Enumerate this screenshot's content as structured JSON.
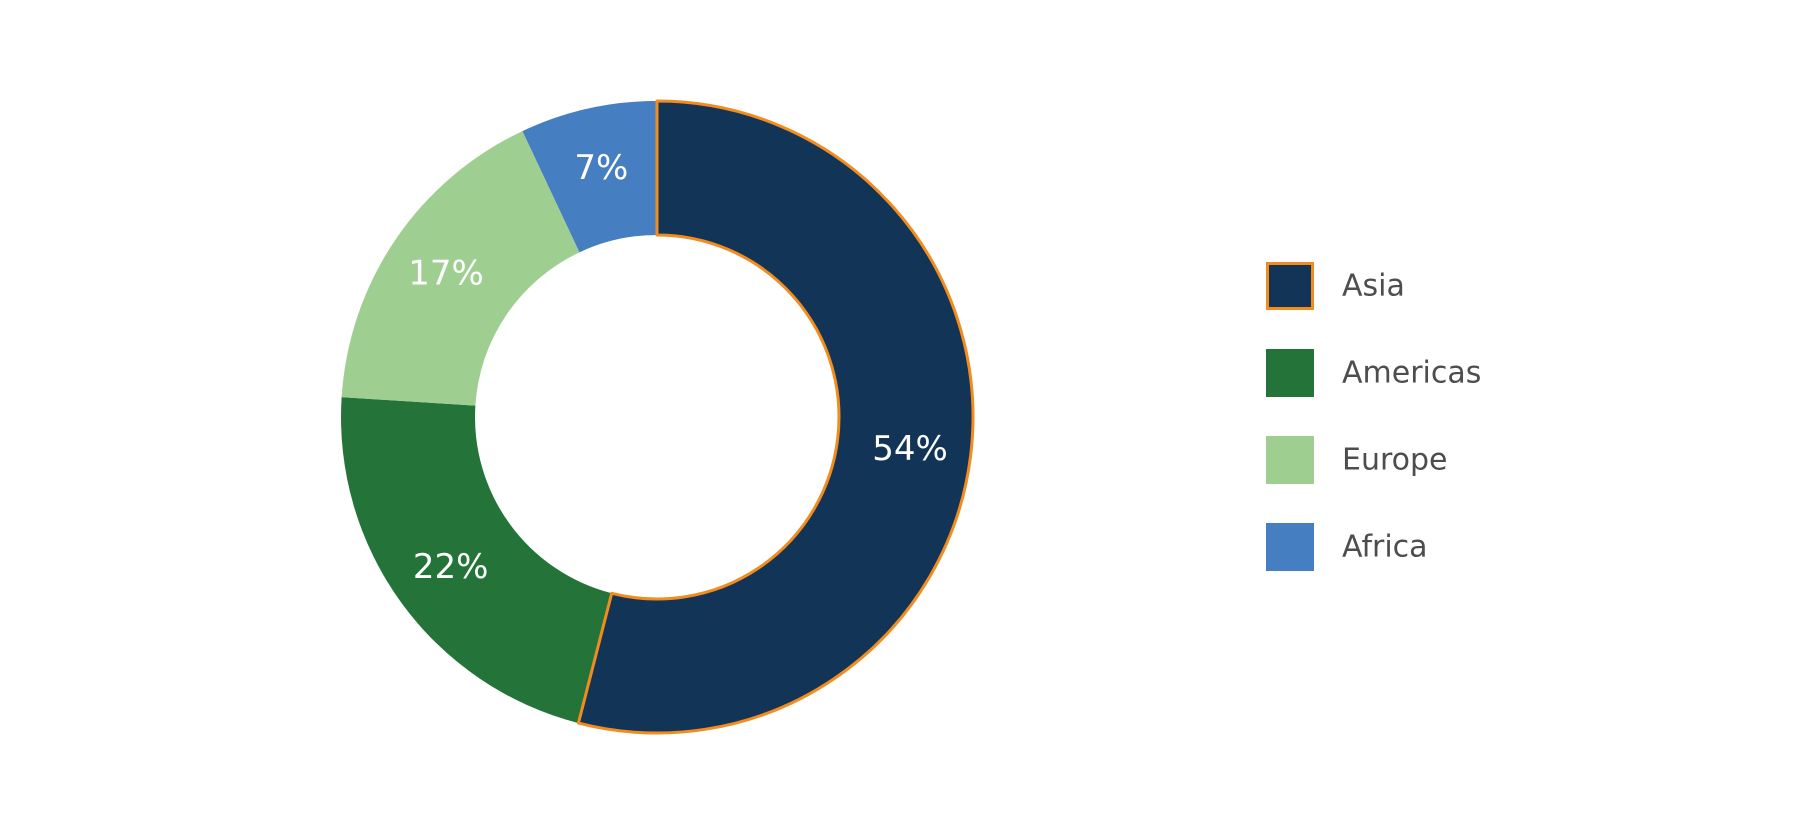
{
  "chart_data": {
    "type": "pie",
    "variant": "donut",
    "title": "",
    "categories": [
      "Asia",
      "Americas",
      "Europe",
      "Africa"
    ],
    "values": [
      54,
      22,
      17,
      7
    ],
    "value_labels": [
      "54%",
      "22%",
      "17%",
      "7%"
    ],
    "colors": [
      "#123456",
      "#24743A",
      "#9ECF91",
      "#457FC1"
    ],
    "highlighted": "Asia",
    "highlight_color": "#F28C1E",
    "legend": {
      "placement": "right",
      "entries": [
        "Asia",
        "Americas",
        "Europe",
        "Africa"
      ]
    }
  }
}
